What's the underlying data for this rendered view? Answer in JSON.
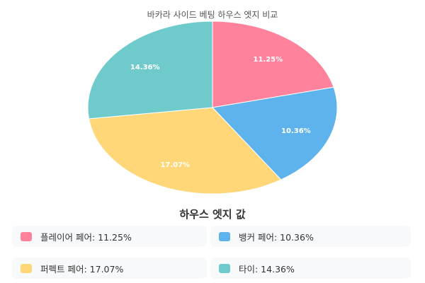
{
  "chart_data": {
    "type": "pie",
    "title": "바카라 사이드 베팅 하우스 엣지 비교",
    "slices": [
      {
        "label": "플레이어 페어",
        "value": 11.25,
        "display": "11.25%",
        "color": "#ff829d"
      },
      {
        "label": "뱅커 페어",
        "value": 10.36,
        "display": "10.36%",
        "color": "#5eb3ec"
      },
      {
        "label": "퍼펙트 페어",
        "value": 17.07,
        "display": "17.07%",
        "color": "#ffd778"
      },
      {
        "label": "타이",
        "value": 14.36,
        "display": "14.36%",
        "color": "#6fcbcb"
      }
    ]
  },
  "legend": {
    "title": "하우스 엣지 값",
    "items": [
      {
        "text": "플레이어 페어: 11.25%",
        "color": "#ff829d"
      },
      {
        "text": "뱅커 페어: 10.36%",
        "color": "#5eb3ec"
      },
      {
        "text": "퍼펙트 페어: 17.07%",
        "color": "#ffd778"
      },
      {
        "text": "타이: 14.36%",
        "color": "#6fcbcb"
      }
    ]
  }
}
